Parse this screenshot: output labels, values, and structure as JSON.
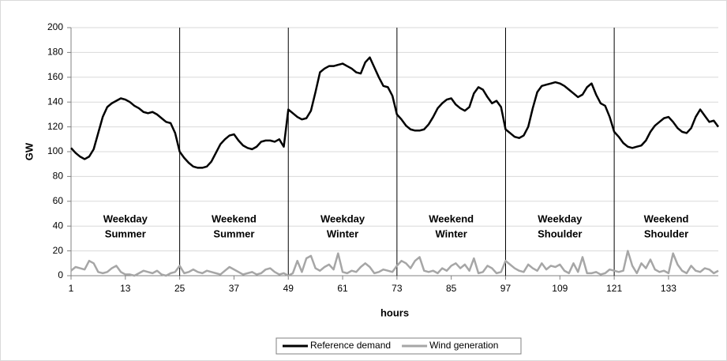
{
  "chart_data": {
    "type": "line",
    "y_label": "GW",
    "x_label": "hours",
    "x": [
      1,
      2,
      3,
      4,
      5,
      6,
      7,
      8,
      9,
      10,
      11,
      12,
      13,
      14,
      15,
      16,
      17,
      18,
      19,
      20,
      21,
      22,
      23,
      24,
      25,
      26,
      27,
      28,
      29,
      30,
      31,
      32,
      33,
      34,
      35,
      36,
      37,
      38,
      39,
      40,
      41,
      42,
      43,
      44,
      45,
      46,
      47,
      48,
      49,
      50,
      51,
      52,
      53,
      54,
      55,
      56,
      57,
      58,
      59,
      60,
      61,
      62,
      63,
      64,
      65,
      66,
      67,
      68,
      69,
      70,
      71,
      72,
      73,
      74,
      75,
      76,
      77,
      78,
      79,
      80,
      81,
      82,
      83,
      84,
      85,
      86,
      87,
      88,
      89,
      90,
      91,
      92,
      93,
      94,
      95,
      96,
      97,
      98,
      99,
      100,
      101,
      102,
      103,
      104,
      105,
      106,
      107,
      108,
      109,
      110,
      111,
      112,
      113,
      114,
      115,
      116,
      117,
      118,
      119,
      120,
      121,
      122,
      123,
      124,
      125,
      126,
      127,
      128,
      129,
      130,
      131,
      132,
      133,
      134,
      135,
      136,
      137,
      138,
      139,
      140,
      141,
      142,
      143,
      144
    ],
    "series": [
      {
        "name": "Reference demand",
        "color": "#000000",
        "width": 2.5,
        "values": [
          103,
          99,
          96,
          94,
          96,
          102,
          115,
          128,
          136,
          139,
          141,
          143,
          142,
          140,
          137,
          135,
          132,
          131,
          132,
          130,
          127,
          124,
          123,
          115,
          100,
          95,
          91,
          88,
          87,
          87,
          88,
          92,
          99,
          106,
          110,
          113,
          114,
          109,
          105,
          103,
          102,
          104,
          108,
          109,
          109,
          108,
          110,
          104,
          134,
          131,
          128,
          126,
          127,
          133,
          148,
          164,
          167,
          169,
          169,
          170,
          171,
          169,
          167,
          164,
          163,
          172,
          176,
          168,
          160,
          153,
          152,
          145,
          130,
          126,
          121,
          118,
          117,
          117,
          118,
          122,
          128,
          135,
          139,
          142,
          143,
          138,
          135,
          133,
          136,
          147,
          152,
          150,
          144,
          139,
          141,
          136,
          118,
          115,
          112,
          111,
          113,
          120,
          135,
          148,
          153,
          154,
          155,
          156,
          155,
          153,
          150,
          147,
          144,
          146,
          152,
          155,
          146,
          139,
          137,
          128,
          116,
          112,
          107,
          104,
          103,
          104,
          105,
          109,
          116,
          121,
          124,
          127,
          128,
          124,
          119,
          116,
          115,
          119,
          128,
          134,
          129,
          124,
          125,
          120
        ]
      },
      {
        "name": "Wind generation",
        "color": "#a6a6a6",
        "width": 2.5,
        "values": [
          4,
          7,
          6,
          5,
          12,
          10,
          3,
          2,
          3,
          6,
          8,
          3,
          1,
          1,
          0,
          2,
          4,
          3,
          2,
          4,
          1,
          0,
          2,
          3,
          8,
          2,
          3,
          5,
          3,
          2,
          4,
          3,
          2,
          1,
          4,
          7,
          5,
          3,
          1,
          2,
          3,
          1,
          2,
          5,
          6,
          3,
          1,
          2,
          0,
          2,
          12,
          3,
          14,
          16,
          6,
          4,
          7,
          9,
          5,
          18,
          3,
          2,
          4,
          3,
          7,
          10,
          7,
          2,
          3,
          5,
          4,
          3,
          8,
          12,
          10,
          6,
          12,
          15,
          4,
          3,
          4,
          2,
          6,
          4,
          8,
          10,
          6,
          9,
          4,
          14,
          2,
          3,
          8,
          6,
          2,
          3,
          12,
          9,
          6,
          4,
          3,
          9,
          6,
          4,
          10,
          5,
          8,
          7,
          9,
          4,
          2,
          10,
          3,
          15,
          2,
          2,
          3,
          1,
          2,
          5,
          4,
          3,
          4,
          20,
          8,
          2,
          10,
          6,
          13,
          5,
          3,
          4,
          2,
          18,
          9,
          4,
          2,
          8,
          4,
          3,
          6,
          5,
          2,
          4
        ]
      }
    ],
    "dividers": [
      25,
      49,
      73,
      97,
      121
    ],
    "period_labels": [
      [
        "Weekday",
        "Summer"
      ],
      [
        "Weekend",
        "Summer"
      ],
      [
        "Weekday",
        "Winter"
      ],
      [
        "Weekend",
        "Winter"
      ],
      [
        "Weekday",
        "Shoulder"
      ],
      [
        "Weekend",
        "Shoulder"
      ]
    ],
    "xlim": [
      1,
      144
    ],
    "xticks": [
      1,
      13,
      25,
      37,
      49,
      61,
      73,
      85,
      97,
      109,
      121,
      133
    ],
    "ylim": [
      0,
      200
    ],
    "yticks": [
      0,
      20,
      40,
      60,
      80,
      100,
      120,
      140,
      160,
      180,
      200
    ],
    "grid": true,
    "legend": "bottom"
  }
}
